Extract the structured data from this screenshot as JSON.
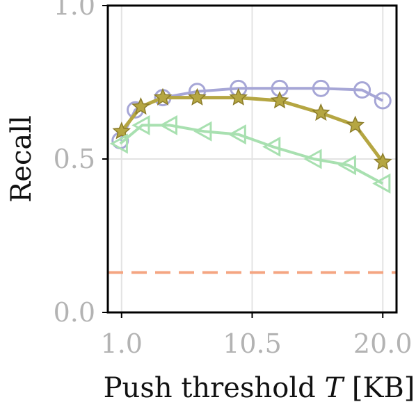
{
  "chart_data": {
    "type": "line",
    "title": "",
    "xlabel": "Push threshold",
    "xlabel_symbol": "T",
    "xlabel_unit": "[KB]",
    "ylabel": "Recall",
    "xlim": [
      0.0,
      21.0
    ],
    "ylim": [
      0.0,
      1.0
    ],
    "x_ticks": [
      1.0,
      10.5,
      20.0
    ],
    "x_tick_labels": [
      "1.0",
      "10.5",
      "20.0"
    ],
    "y_ticks": [
      0.0,
      0.5,
      1.0
    ],
    "y_tick_labels": [
      "0.0",
      "0.5",
      "1.0"
    ],
    "grid": true,
    "x": [
      1.0,
      2.0,
      4.0,
      5.8,
      7.5,
      9.2,
      11.0,
      12.8,
      14.5,
      16.2,
      17.9,
      19.7,
      20.0
    ],
    "series": [
      {
        "color": "#a6a6d6",
        "marker": "circle",
        "points": [
          [
            0.9,
            0.56
          ],
          [
            2.0,
            0.66
          ],
          [
            4.0,
            0.7
          ],
          [
            6.5,
            0.72
          ],
          [
            9.5,
            0.73
          ],
          [
            12.5,
            0.73
          ],
          [
            15.5,
            0.73
          ],
          [
            18.5,
            0.725
          ],
          [
            20.0,
            0.69
          ]
        ]
      },
      {
        "color": "#b5a642",
        "marker": "star",
        "points": [
          [
            1.0,
            0.59
          ],
          [
            2.4,
            0.67
          ],
          [
            4.0,
            0.7
          ],
          [
            6.5,
            0.7
          ],
          [
            9.5,
            0.7
          ],
          [
            12.5,
            0.69
          ],
          [
            15.5,
            0.65
          ],
          [
            18.0,
            0.61
          ],
          [
            20.0,
            0.49
          ]
        ]
      },
      {
        "color": "#a8e0b0",
        "marker": "triangle-left",
        "points": [
          [
            0.9,
            0.55
          ],
          [
            2.5,
            0.61
          ],
          [
            4.5,
            0.61
          ],
          [
            7.0,
            0.59
          ],
          [
            9.5,
            0.58
          ],
          [
            12.0,
            0.54
          ],
          [
            15.0,
            0.5
          ],
          [
            17.5,
            0.48
          ],
          [
            20.0,
            0.42
          ]
        ]
      },
      {
        "color": "#f4a582",
        "marker": "none",
        "dashed": true,
        "points": [
          [
            0.0,
            0.13
          ],
          [
            21.0,
            0.13
          ]
        ]
      }
    ]
  }
}
